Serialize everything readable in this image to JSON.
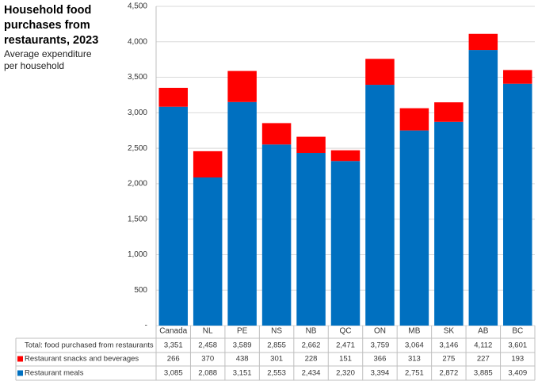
{
  "chart_data": {
    "type": "bar",
    "stacked": true,
    "title": "Household food purchases from restaurants, 2023",
    "subtitle": "Average expenditure per household",
    "categories": [
      "Canada",
      "NL",
      "PE",
      "NS",
      "NB",
      "QC",
      "ON",
      "MB",
      "SK",
      "AB",
      "BC"
    ],
    "series": [
      {
        "name": "Restaurant meals",
        "color": "#0070c0",
        "values": [
          3085,
          2088,
          3151,
          2553,
          2434,
          2320,
          3394,
          2751,
          2872,
          3885,
          3409
        ],
        "value_labels": [
          "3,085",
          "2,088",
          "3,151",
          "2,553",
          "2,434",
          "2,320",
          "3,394",
          "2,751",
          "2,872",
          "3,885",
          "3,409"
        ]
      },
      {
        "name": "Restaurant snacks and beverages",
        "color": "#ff0000",
        "values": [
          266,
          370,
          438,
          301,
          228,
          151,
          366,
          313,
          275,
          227,
          193
        ]
      }
    ],
    "total": {
      "name": "Total: food purchased from restaurants",
      "values": [
        3351,
        2458,
        3589,
        2855,
        2662,
        2471,
        3759,
        3064,
        3146,
        4112,
        3601
      ],
      "value_labels": [
        "3,351",
        "2,458",
        "3,589",
        "2,855",
        "2,662",
        "2,471",
        "3,759",
        "3,064",
        "3,146",
        "4,112",
        "3,601"
      ]
    },
    "ylim": [
      0,
      4500
    ],
    "yticks": [
      {
        "value": 0,
        "label": "-"
      },
      500,
      {
        "value": 1000,
        "label": "1,000"
      },
      {
        "value": 1500,
        "label": "1,500"
      },
      {
        "value": 2000,
        "label": "2,000"
      },
      {
        "value": 2500,
        "label": "2,500"
      },
      {
        "value": 3000,
        "label": "3,000"
      },
      {
        "value": 3500,
        "label": "3,500"
      },
      {
        "value": 4000,
        "label": "4,000"
      },
      {
        "value": 4500,
        "label": "4,500"
      }
    ],
    "grid": true
  }
}
